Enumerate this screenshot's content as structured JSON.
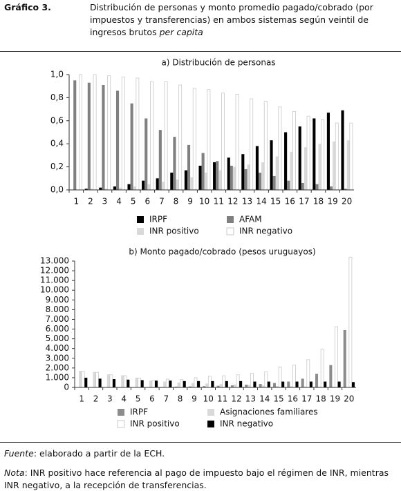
{
  "figure_label": "Gráfico 3.",
  "caption": "Distribución de personas y monto promedio pagado/cobrado (por impuestos y transferencias) en ambos sistemas según veintil de ingresos brutos",
  "caption_emphasis": "per capita",
  "source": {
    "label": "Fuente",
    "text": ": elaborado a partir de la ECH."
  },
  "note": {
    "label": "Nota",
    "text": ": INR positivo hace referencia al pago de impuesto bajo el régimen de INR, mientras INR negativo, a la recepción de transferencias."
  },
  "chart_data": [
    {
      "type": "bar",
      "title": "a) Distribución de personas",
      "categories": [
        "1",
        "2",
        "3",
        "4",
        "5",
        "6",
        "7",
        "8",
        "9",
        "10",
        "11",
        "12",
        "13",
        "14",
        "15",
        "16",
        "17",
        "18",
        "19",
        "20"
      ],
      "series": [
        {
          "name": "IRPF",
          "color": "#000000",
          "values": [
            0,
            0.01,
            0.02,
            0.03,
            0.05,
            0.08,
            0.1,
            0.15,
            0.17,
            0.21,
            0.24,
            0.28,
            0.31,
            0.38,
            0.43,
            0.5,
            0.55,
            0.62,
            0.67,
            0.69
          ]
        },
        {
          "name": "AFAM",
          "color": "#808080",
          "values": [
            0.95,
            0.93,
            0.91,
            0.86,
            0.75,
            0.62,
            0.52,
            0.46,
            0.39,
            0.32,
            0.25,
            0.21,
            0.18,
            0.15,
            0.12,
            0.08,
            0.06,
            0.05,
            0.03,
            0.01
          ]
        },
        {
          "name": "INR positivo",
          "color": "#d9d9d9",
          "values": [
            0,
            0.01,
            0.01,
            0.02,
            0.03,
            0.05,
            0.07,
            0.09,
            0.11,
            0.15,
            0.17,
            0.2,
            0.22,
            0.24,
            0.29,
            0.33,
            0.37,
            0.4,
            0.42,
            0.43
          ]
        },
        {
          "name": "INR negativo",
          "color": "#ffffff",
          "values": [
            1.0,
            1.0,
            0.99,
            0.98,
            0.97,
            0.94,
            0.94,
            0.91,
            0.88,
            0.87,
            0.84,
            0.83,
            0.79,
            0.77,
            0.72,
            0.68,
            0.64,
            0.61,
            0.58,
            0.58
          ]
        }
      ],
      "ylim": [
        0,
        1.0
      ],
      "yticks": [
        {
          "value": 0,
          "label": "0,0"
        },
        {
          "value": 0.2,
          "label": "0,2"
        },
        {
          "value": 0.4,
          "label": "0,4"
        },
        {
          "value": 0.6,
          "label": "0,6"
        },
        {
          "value": 0.8,
          "label": "0,8"
        },
        {
          "value": 1.0,
          "label": "1,0"
        }
      ]
    },
    {
      "type": "bar",
      "title": "b) Monto pagado/cobrado (pesos uruguayos)",
      "categories": [
        "1",
        "2",
        "3",
        "4",
        "5",
        "6",
        "7",
        "8",
        "9",
        "10",
        "11",
        "12",
        "13",
        "14",
        "15",
        "16",
        "17",
        "18",
        "19",
        "20"
      ],
      "series": [
        {
          "name": "IRPF",
          "color": "#8c8c8c",
          "values": [
            0,
            0,
            0,
            10,
            20,
            30,
            50,
            80,
            100,
            130,
            170,
            220,
            280,
            350,
            450,
            600,
            900,
            1400,
            2300,
            5900
          ]
        },
        {
          "name": "Asignaciones familiares",
          "color": "#d9d9d9",
          "values": [
            1700,
            1600,
            1350,
            1250,
            1000,
            700,
            600,
            500,
            450,
            400,
            350,
            300,
            250,
            200,
            150,
            120,
            100,
            80,
            60,
            40
          ]
        },
        {
          "name": "INR positivo",
          "color": "#ffffff",
          "values": [
            1650,
            1550,
            1300,
            1200,
            950,
            700,
            850,
            800,
            1000,
            1150,
            1200,
            1300,
            1450,
            1600,
            2100,
            2300,
            2850,
            3950,
            6250,
            13400
          ]
        },
        {
          "name": "INR negativo",
          "color": "#000000",
          "values": [
            1000,
            900,
            850,
            800,
            750,
            700,
            700,
            650,
            650,
            650,
            650,
            650,
            600,
            600,
            600,
            600,
            600,
            600,
            600,
            550
          ]
        }
      ],
      "ylim": [
        0,
        13000
      ],
      "yticks": [
        0,
        {
          "value": 1000,
          "label": "1.000"
        },
        {
          "value": 2000,
          "label": "2.000"
        },
        {
          "value": 3000,
          "label": "3.000"
        },
        {
          "value": 4000,
          "label": "4.000"
        },
        {
          "value": 5000,
          "label": "5.000"
        },
        {
          "value": 6000,
          "label": "6.000"
        },
        {
          "value": 7000,
          "label": "7.000"
        },
        {
          "value": 8000,
          "label": "8.000"
        },
        {
          "value": 9000,
          "label": "9.000"
        },
        {
          "value": 10000,
          "label": "10.000"
        },
        {
          "value": 11000,
          "label": "11.000"
        },
        {
          "value": 12000,
          "label": "12.000"
        },
        {
          "value": 13000,
          "label": "13.000"
        }
      ]
    }
  ]
}
